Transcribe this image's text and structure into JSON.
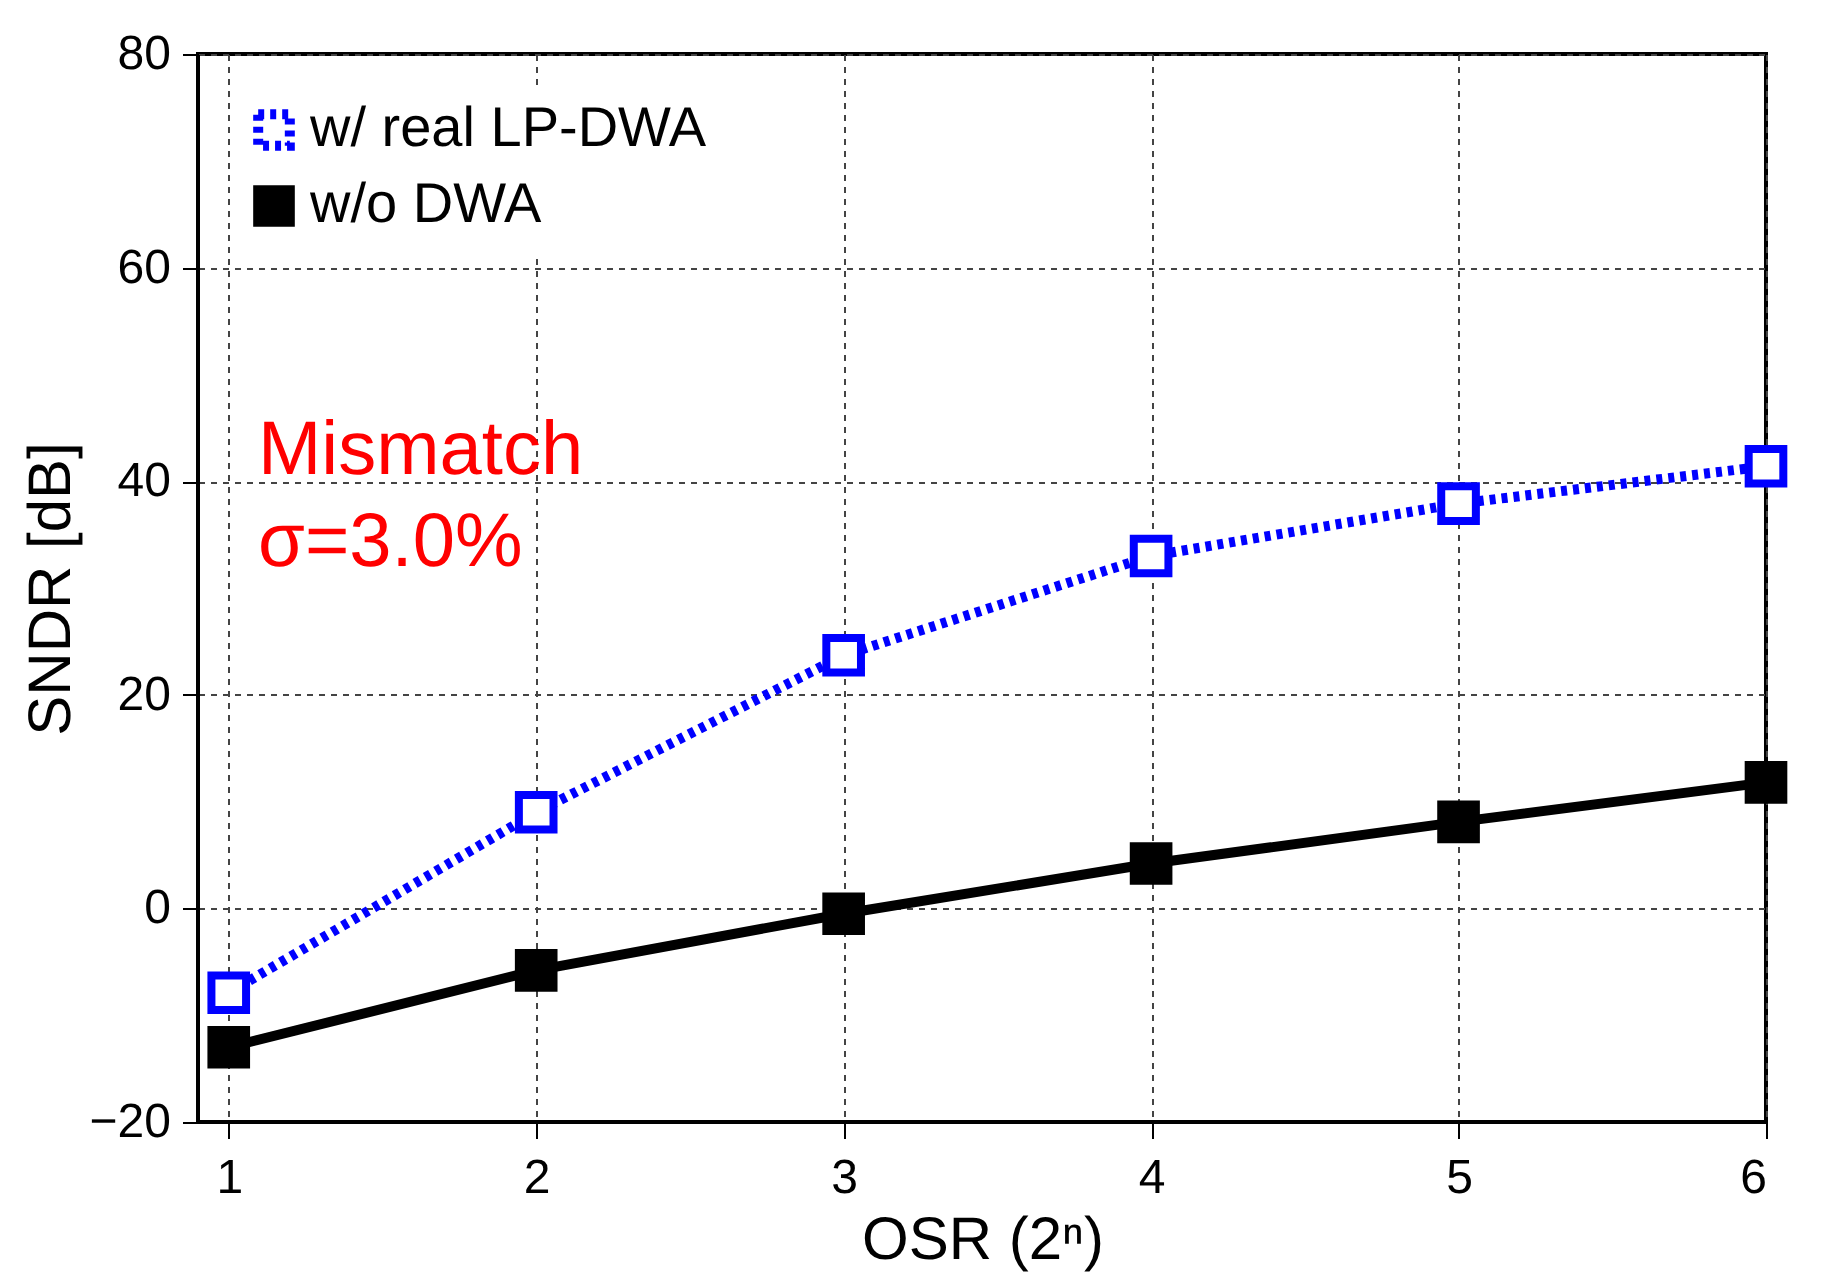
{
  "chart_data": {
    "type": "line",
    "xlabel": "OSR (2ⁿ)",
    "ylabel": "SNDR [dB]",
    "x": [
      1,
      2,
      3,
      4,
      5,
      6
    ],
    "series": [
      {
        "name": "w/ real LP-DWA",
        "color": "#0000ff",
        "values": [
          -7.9,
          9,
          23.7,
          33,
          37.9,
          41.4
        ],
        "line_style": "dotted",
        "marker": "square"
      },
      {
        "name": "w/o DWA",
        "color": "#000000",
        "values": [
          -13,
          -5.8,
          -0.5,
          4.2,
          8.1,
          11.8
        ],
        "line_style": "solid",
        "marker": "square"
      }
    ],
    "xlim": [
      0.9,
      6
    ],
    "xticks": [
      1,
      2,
      3,
      4,
      5,
      6
    ],
    "ylim": [
      -20,
      80
    ],
    "yticks": [
      -20,
      0,
      20,
      40,
      60,
      80
    ],
    "grid": true,
    "legend": "top left",
    "annotations": [
      "Mismatch\nσ=3.0%"
    ]
  }
}
